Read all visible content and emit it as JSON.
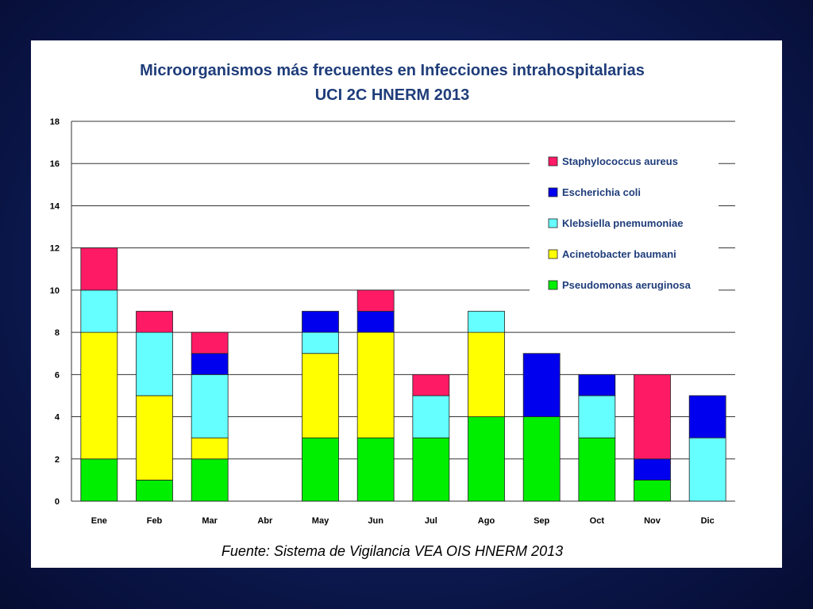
{
  "chart_data": {
    "type": "bar",
    "stacked": true,
    "title": "Microorganismos más frecuentes en Infecciones intrahospitalarias",
    "subtitle": "UCI 2C  HNERM 2013",
    "xlabel": "",
    "ylabel": "",
    "ylim": [
      0,
      18
    ],
    "yticks": [
      0,
      2,
      4,
      6,
      8,
      10,
      12,
      14,
      16,
      18
    ],
    "grid": true,
    "legend_position": "top-right",
    "categories": [
      "Ene",
      "Feb",
      "Mar",
      "Abr",
      "May",
      "Jun",
      "Jul",
      "Ago",
      "Sep",
      "Oct",
      "Nov",
      "Dic"
    ],
    "series": [
      {
        "name": "Pseudomonas aeruginosa",
        "color": "#00ee00",
        "values": [
          2,
          1,
          2,
          0,
          3,
          3,
          3,
          4,
          4,
          3,
          1,
          0
        ]
      },
      {
        "name": "Acinetobacter baumani",
        "color": "#ffff00",
        "values": [
          6,
          4,
          1,
          0,
          4,
          5,
          0,
          4,
          0,
          0,
          0,
          0
        ]
      },
      {
        "name": "Klebsiella pnemumoniae",
        "color": "#66ffff",
        "values": [
          2,
          3,
          3,
          0,
          1,
          0,
          2,
          1,
          0,
          2,
          0,
          3
        ]
      },
      {
        "name": "Escherichia coli",
        "color": "#0000ee",
        "values": [
          0,
          0,
          1,
          0,
          1,
          1,
          0,
          0,
          3,
          1,
          1,
          2
        ]
      },
      {
        "name": "Staphylococcus aureus",
        "color": "#ff1a66",
        "values": [
          2,
          1,
          1,
          0,
          0,
          1,
          1,
          0,
          0,
          0,
          4,
          0
        ]
      }
    ],
    "legend_order": [
      "Staphylococcus aureus",
      "Escherichia coli",
      "Klebsiella pnemumoniae",
      "Acinetobacter baumani",
      "Pseudomonas aeruginosa"
    ],
    "source": "Fuente: Sistema de Vigilancia VEA OIS HNERM 2013"
  }
}
